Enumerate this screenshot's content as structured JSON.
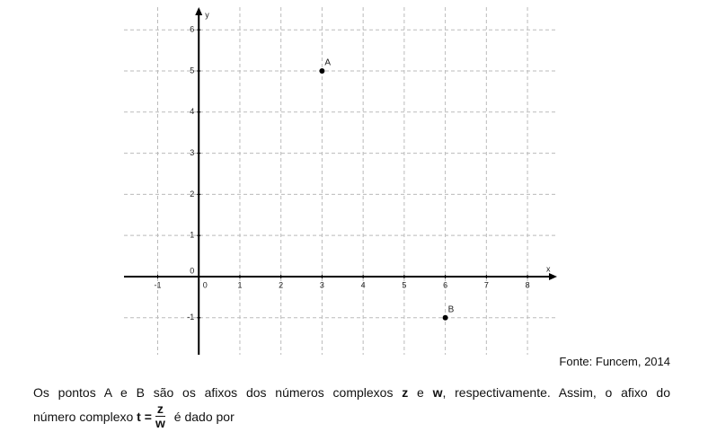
{
  "chart_data": {
    "type": "scatter",
    "x_label": "x",
    "y_label": "y",
    "x": [
      3,
      6
    ],
    "values": [
      5,
      -1
    ],
    "point_labels": [
      "A",
      "B"
    ],
    "color": "#000000",
    "xlim": [
      -1.82,
      8.72
    ],
    "ylim": [
      -1.9,
      6.55
    ],
    "xticks": [
      -1,
      0,
      1,
      2,
      3,
      4,
      5,
      6,
      7,
      8
    ],
    "yticks": [
      -1,
      0,
      1,
      2,
      3,
      4,
      5,
      6
    ],
    "grid": true
  },
  "source": "Fonte: Funcem, 2014",
  "question": {
    "line1": [
      "Os pontos A e B são os afixos dos números complexos ",
      "z",
      " e ",
      "w",
      ", respectivamente. Assim, o afixo do"
    ],
    "line2_start": "número complexo ",
    "t_label": "t =",
    "numerator": "z",
    "denominator": "w",
    "end": " é dado por"
  }
}
